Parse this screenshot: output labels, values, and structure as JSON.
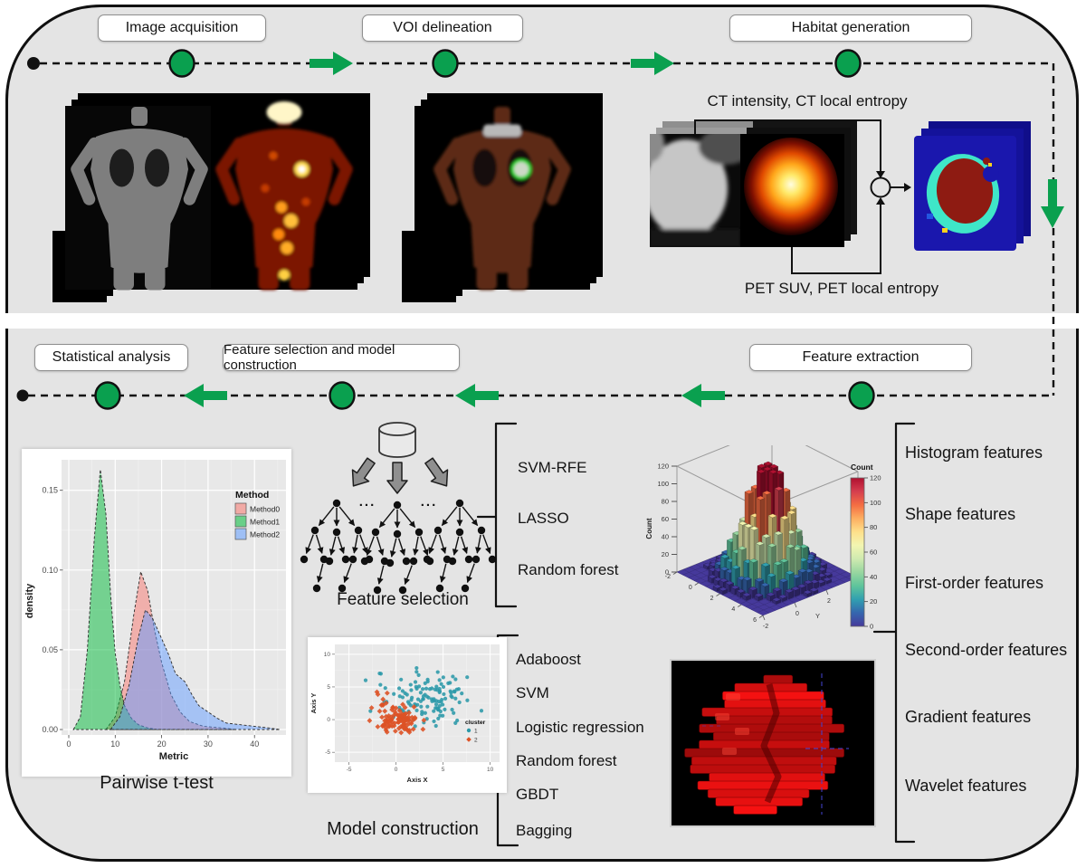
{
  "workflow": {
    "top_stages": [
      "Image acquisition",
      "VOI delineation",
      "Habitat generation"
    ],
    "bottom_stages": [
      "Statistical analysis",
      "Feature selection and model construction",
      "Feature extraction"
    ]
  },
  "habitat_generation": {
    "ct_inputs_label": "CT intensity, CT local entropy",
    "pet_inputs_label": "PET SUV, PET local entropy"
  },
  "statistical_analysis": {
    "caption": "Pairwise t-test"
  },
  "feature_selection": {
    "caption": "Feature selection",
    "ellipsis": "...",
    "methods": [
      "SVM-RFE",
      "LASSO",
      "Random forest"
    ]
  },
  "model_construction": {
    "caption": "Model construction",
    "models": [
      "Adaboost",
      "SVM",
      "Logistic regression",
      "Random forest",
      "GBDT",
      "Bagging"
    ]
  },
  "feature_extraction": {
    "feature_types": [
      "Histogram features",
      "Shape features",
      "First-order features",
      "Second-order features",
      "Gradient features",
      "Wavelet features"
    ]
  },
  "colors": {
    "accent_green": "#0aa04f",
    "panel_gray": "#e4e4e4",
    "habitat_map_blue": "#1a17ad",
    "habitat_core_red": "#8e1b12",
    "habitat_ring_cyan": "#3fe6c8",
    "tumor_red": "#d40f0f"
  },
  "chart_data": [
    {
      "id": "density",
      "type": "area",
      "title": "",
      "xlabel": "Metric",
      "ylabel": "density",
      "xlim": [
        0,
        46
      ],
      "ylim": [
        0,
        0.168
      ],
      "x_ticks": [
        0,
        10,
        20,
        30,
        40
      ],
      "y_ticks": [
        "0.00",
        "0.05",
        "0.10",
        "0.15"
      ],
      "legend_title": "Method",
      "legend_position": "inside-top-right",
      "grid": true,
      "series": [
        {
          "name": "Method0",
          "color": "#F8766D",
          "peak_x": 15.5,
          "peak_y": 0.099,
          "points": [
            [
              8,
              0
            ],
            [
              10,
              0.008
            ],
            [
              12,
              0.03
            ],
            [
              14,
              0.072
            ],
            [
              15.5,
              0.099
            ],
            [
              17,
              0.087
            ],
            [
              18.5,
              0.062
            ],
            [
              20,
              0.042
            ],
            [
              22,
              0.022
            ],
            [
              24,
              0.011
            ],
            [
              26,
              0.005
            ],
            [
              29,
              0.002
            ],
            [
              33,
              0.001
            ],
            [
              36,
              0
            ]
          ]
        },
        {
          "name": "Method1",
          "color": "#00BA38",
          "peak_x": 6.8,
          "peak_y": 0.163,
          "points": [
            [
              1,
              0
            ],
            [
              2.5,
              0.008
            ],
            [
              4,
              0.05
            ],
            [
              5.5,
              0.12
            ],
            [
              6.8,
              0.163
            ],
            [
              8,
              0.135
            ],
            [
              9,
              0.085
            ],
            [
              10,
              0.048
            ],
            [
              11,
              0.028
            ],
            [
              12,
              0.015
            ],
            [
              13.5,
              0.007
            ],
            [
              15,
              0.003
            ],
            [
              17,
              0.001
            ],
            [
              19,
              0
            ]
          ]
        },
        {
          "name": "Method2",
          "color": "#619CFF",
          "peak_x": 16.5,
          "peak_y": 0.075,
          "points": [
            [
              9,
              0
            ],
            [
              11,
              0.008
            ],
            [
              13,
              0.028
            ],
            [
              15,
              0.058
            ],
            [
              16.5,
              0.075
            ],
            [
              18,
              0.07
            ],
            [
              20,
              0.057
            ],
            [
              21.5,
              0.047
            ],
            [
              23,
              0.035
            ],
            [
              25,
              0.03
            ],
            [
              26.5,
              0.022
            ],
            [
              28,
              0.015
            ],
            [
              30,
              0.011
            ],
            [
              32,
              0.007
            ],
            [
              34,
              0.004
            ],
            [
              37,
              0.003
            ],
            [
              40,
              0.002
            ],
            [
              43,
              0.001
            ],
            [
              45.5,
              0
            ]
          ]
        }
      ]
    },
    {
      "id": "cluster_scatter",
      "type": "scatter",
      "xlabel": "Axis X",
      "ylabel": "Axis Y",
      "xlim": [
        -6.5,
        11
      ],
      "ylim": [
        -6.5,
        11.5
      ],
      "x_ticks": [
        -5,
        0,
        5,
        10
      ],
      "y_ticks": [
        -5,
        0,
        5,
        10
      ],
      "legend_title": "cluster",
      "legend_position": "inside-bottom-right",
      "series": [
        {
          "name": "1",
          "marker": "circle",
          "color": "#2b98a8",
          "n": 125,
          "center": [
            3.4,
            3.6
          ],
          "sd": [
            2.3,
            2.2
          ]
        },
        {
          "name": "2",
          "marker": "diamond",
          "color": "#dd5226",
          "n": 95,
          "center": [
            0.4,
            -0.1
          ],
          "sd": [
            1.0,
            1.0
          ],
          "spray": {
            "n": 14,
            "center": [
              -1.2,
              2.6
            ],
            "sd": [
              1.0,
              1.3
            ]
          }
        }
      ]
    },
    {
      "id": "habitat_histogram",
      "type": "3d-histogram",
      "zlabel": "Count",
      "zlim": [
        0,
        120
      ],
      "z_ticks": [
        0,
        20,
        40,
        60,
        80,
        100,
        120
      ],
      "x_ticks": [
        -2,
        0,
        2,
        4,
        6
      ],
      "y_ticks": [
        -2,
        0,
        2,
        4
      ],
      "y_axis_label": "Y",
      "colorbar_title": "Count",
      "colorbar_ticks": [
        120,
        100,
        80,
        60,
        40,
        20,
        0
      ],
      "peak": 120,
      "sigma": 2.6,
      "grid_n": 15,
      "palette": [
        "#46399b",
        "#3566ae",
        "#31a0b0",
        "#5fc49b",
        "#98d6a0",
        "#cfeab0",
        "#f2f5b1",
        "#fee08b",
        "#fdae61",
        "#f46d43",
        "#d53e4f",
        "#b01030"
      ]
    }
  ]
}
